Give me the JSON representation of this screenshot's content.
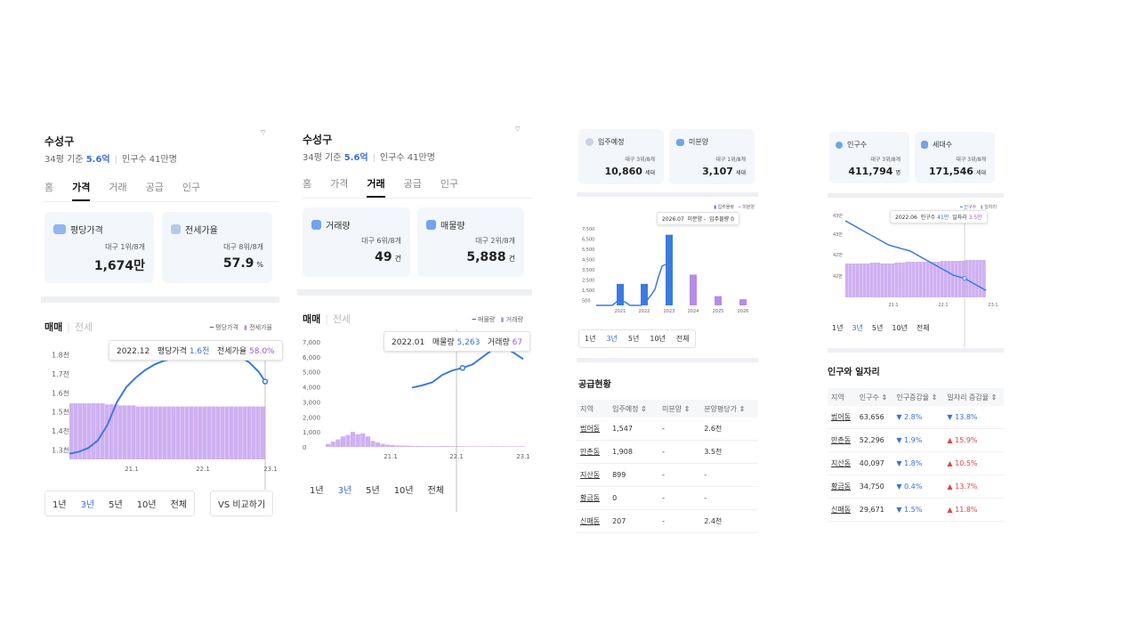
{
  "panel1": {
    "title": "수성구",
    "sub_prefix": "34평 기준",
    "sub_price": "5.6억",
    "sub_pop_label": "인구수",
    "sub_pop": "41만명",
    "tabs": [
      "홈",
      "가격",
      "거래",
      "공급",
      "인구"
    ],
    "active_tab": "가격",
    "cards": [
      {
        "label": "평당가격",
        "rank": "대구 1위/8개",
        "value": "1,674만",
        "unit": ""
      },
      {
        "label": "전세가율",
        "rank": "대구 8위/8개",
        "value": "57.9",
        "unit": "%"
      }
    ],
    "subtab_on": "매매",
    "subtab_off": "전세",
    "legend": [
      "평당가격",
      "전세가율"
    ],
    "tooltip": {
      "date": "2022.12",
      "k1": "평당가격",
      "v1": "1.6천",
      "k2": "전세가율",
      "v2": "58.0%"
    },
    "ranges": [
      "1년",
      "3년",
      "5년",
      "10년",
      "전체"
    ],
    "range_on": "3년",
    "compare": "VS 비교하기"
  },
  "panel2": {
    "title": "수성구",
    "sub_prefix": "34평 기준",
    "sub_price": "5.6억",
    "sub_pop_label": "인구수",
    "sub_pop": "41만명",
    "tabs": [
      "홈",
      "가격",
      "거래",
      "공급",
      "인구"
    ],
    "active_tab": "거래",
    "cards": [
      {
        "label": "거래량",
        "rank": "대구 6위/8개",
        "value": "49",
        "unit": "건"
      },
      {
        "label": "매물량",
        "rank": "대구 2위/8개",
        "value": "5,888",
        "unit": "건"
      }
    ],
    "subtab_on": "매매",
    "subtab_off": "전세",
    "legend": [
      "매물량",
      "거래량"
    ],
    "tooltip": {
      "date": "2022.01",
      "k1": "매물량",
      "v1": "5,263",
      "k2": "거래량",
      "v2": "67"
    },
    "ranges": [
      "1년",
      "3년",
      "5년",
      "10년",
      "전체"
    ],
    "range_on": "3년"
  },
  "panel3": {
    "cards": [
      {
        "label": "입주예정",
        "rank": "대구 3위/8개",
        "value": "10,860",
        "unit": "세대"
      },
      {
        "label": "미분양",
        "rank": "대구 1위/8개",
        "value": "3,107",
        "unit": "세대"
      }
    ],
    "legend": [
      "입주물량",
      "미분양"
    ],
    "tooltip": {
      "date": "2026.07",
      "k1": "미분양",
      "v1": "-",
      "k2": "입주물량",
      "v2": "0"
    },
    "ranges": [
      "1년",
      "3년",
      "5년",
      "10년",
      "전체"
    ],
    "range_on": "3년",
    "section_title": "공급현황",
    "table_headers": [
      "지역",
      "입주예정 ⇕",
      "미분양 ⇕",
      "분양평당가 ⇕"
    ],
    "table_rows": [
      [
        "범어동",
        "1,547",
        "-",
        "2.6천"
      ],
      [
        "만촌동",
        "1,908",
        "-",
        "3.5천"
      ],
      [
        "지산동",
        "899",
        "-",
        "-"
      ],
      [
        "황금동",
        "0",
        "-",
        "-"
      ],
      [
        "신매동",
        "207",
        "-",
        "2.4천"
      ]
    ]
  },
  "panel4": {
    "cards": [
      {
        "label": "인구수",
        "rank": "대구 3위/8개",
        "value": "411,794",
        "unit": "명"
      },
      {
        "label": "세대수",
        "rank": "대구 3위/8개",
        "value": "171,546",
        "unit": "세대"
      }
    ],
    "legend": [
      "인구수",
      "일자리"
    ],
    "tooltip": {
      "date": "2022.06",
      "k1": "인구수",
      "v1": "41만",
      "k2": "일자리",
      "v2": "3.5만"
    },
    "ranges": [
      "1년",
      "3년",
      "5년",
      "10년",
      "전체"
    ],
    "range_on": "3년",
    "section_title": "인구와 일자리",
    "table_headers": [
      "지역",
      "인구수 ⇕",
      "인구증감율 ⇕",
      "일자리 증감율 ⇕"
    ],
    "table_rows": [
      [
        "범어동",
        "63,656",
        "▼ 2.8%",
        "▼ 13.8%"
      ],
      [
        "만촌동",
        "52,296",
        "▼ 1.9%",
        "▲ 15.9%"
      ],
      [
        "지산동",
        "40,097",
        "▼ 1.8%",
        "▲ 10.5%"
      ],
      [
        "황금동",
        "34,750",
        "▼ 0.4%",
        "▲ 13.7%"
      ],
      [
        "신매동",
        "29,671",
        "▼ 1.5%",
        "▲ 11.8%"
      ]
    ]
  },
  "chart_data": [
    {
      "type": "line",
      "y_ticks": [
        "1.8천",
        "1.7천",
        "1.6천",
        "1.5천",
        "1.4천",
        "1.3천"
      ],
      "x_ticks": [
        "21.1",
        "22.1",
        "23.1"
      ],
      "series": [
        {
          "name": "평당가격",
          "x_month_index": [
            0,
            3,
            6,
            9,
            12,
            15,
            18,
            21,
            24,
            27,
            30,
            33,
            36,
            39,
            42,
            45,
            48,
            51,
            54,
            57,
            60,
            62
          ],
          "values": [
            1.28,
            1.29,
            1.31,
            1.35,
            1.43,
            1.55,
            1.63,
            1.68,
            1.72,
            1.75,
            1.77,
            1.78,
            1.79,
            1.8,
            1.81,
            1.81,
            1.81,
            1.8,
            1.79,
            1.76,
            1.71,
            1.66
          ]
        },
        {
          "name": "전세가율",
          "values_note": "area",
          "values": [
            58.3,
            58.3,
            58.2,
            58.1,
            58.0,
            58.0,
            58.0,
            58.0,
            58.0,
            58.0,
            58.0,
            58.0
          ]
        }
      ]
    },
    {
      "type": "line",
      "y_ticks": [
        "7,000",
        "6,000",
        "5,000",
        "4,000",
        "3,000",
        "2,000",
        "1,000",
        "0"
      ],
      "x_ticks": [
        "21.1",
        "22.1",
        "23.1"
      ],
      "series": [
        {
          "name": "매물량",
          "values": [
            3950,
            4100,
            4300,
            4800,
            5100,
            5263,
            5500,
            6000,
            6500,
            6700,
            6300,
            5850
          ]
        },
        {
          "name": "거래량",
          "values": [
            200,
            350,
            500,
            700,
            800,
            1000,
            850,
            900,
            700,
            400,
            300,
            200,
            150,
            120,
            100,
            90,
            80,
            70,
            67,
            60,
            55,
            50,
            50,
            60,
            55,
            50,
            45,
            49
          ]
        }
      ]
    },
    {
      "type": "bar",
      "y_ticks": [
        "7,500",
        "6,500",
        "5,500",
        "4,500",
        "3,500",
        "2,500",
        "1,500",
        "500"
      ],
      "x_ticks": [
        "2021",
        "2022",
        "2023",
        "2024",
        "2025",
        "2026"
      ],
      "series": [
        {
          "name": "입주물량",
          "values": [
            2100,
            2100,
            6900,
            0,
            0,
            0
          ]
        },
        {
          "name": "미분양",
          "values": [
            0,
            0,
            0,
            3000,
            900,
            600
          ]
        }
      ]
    },
    {
      "type": "line",
      "y_ticks": [
        "43만",
        "43만",
        "42만",
        "42만"
      ],
      "x_ticks": [
        "21.1",
        "22.1",
        "23.1"
      ],
      "series": [
        {
          "name": "인구수",
          "values": [
            43.4,
            43.2,
            43.0,
            42.8,
            42.6,
            42.5,
            42.4,
            42.2,
            42.0,
            41.8,
            41.6,
            41.5,
            41.3,
            41.1
          ]
        },
        {
          "name": "일자리",
          "values": [
            3.4,
            3.4,
            3.45,
            3.4,
            3.45,
            3.5,
            3.5,
            3.5,
            3.55,
            3.55,
            3.6,
            3.6
          ]
        }
      ]
    }
  ]
}
